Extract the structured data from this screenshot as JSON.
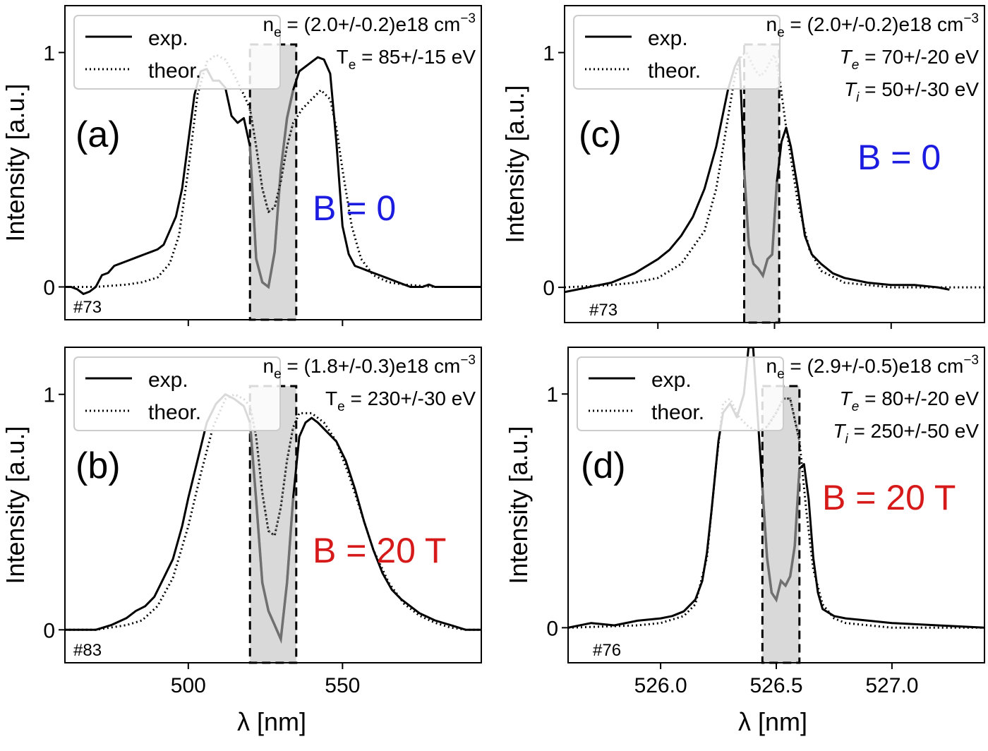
{
  "figure": {
    "xlabel_left": "λ [nm]",
    "xlabel_right": "λ [nm]"
  },
  "colors": {
    "exp": "#000000",
    "theory": "#000000",
    "shade": "#d9d9d9",
    "masked": "#707070",
    "b_zero": "#1c1ce0",
    "b_field": "#d61a1a"
  },
  "chart_data": [
    {
      "id": "a",
      "type": "line",
      "panel_label": "(a)",
      "shot": "#73",
      "ylabel": "Intensity [a.u.]",
      "xlim": [
        460,
        595
      ],
      "ylim": [
        -0.14,
        1.2
      ],
      "xticks": [],
      "yticks": [
        0,
        1
      ],
      "ytick_labels": [
        "0",
        "1"
      ],
      "legend": [
        "exp.",
        "theor."
      ],
      "params": [
        {
          "base": "n",
          "sub": "e",
          "text": " = (2.0+/-0.2)e18 cm",
          "sup": "−3"
        },
        {
          "base": "T",
          "sub": "e",
          "text": " = 85+/-15 eV"
        }
      ],
      "field_label": "B = 0",
      "field_color": "#1c1ce0",
      "shaded": [
        520,
        535
      ],
      "series": [
        {
          "name": "exp.",
          "style": "solid",
          "x": [
            460,
            462,
            464,
            466,
            468,
            470,
            472,
            474,
            476,
            478,
            480,
            482,
            484,
            486,
            488,
            490,
            492,
            494,
            496,
            498,
            500,
            502,
            504,
            506,
            508,
            510,
            512,
            514,
            516,
            518,
            520,
            522,
            524,
            526,
            528,
            530,
            532,
            534,
            536,
            538,
            540,
            542,
            544,
            546,
            548,
            550,
            552,
            554,
            556,
            558,
            560,
            562,
            564,
            566,
            568,
            570,
            572,
            574,
            576,
            578,
            580,
            582,
            584,
            586,
            588,
            590,
            592,
            595
          ],
          "y": [
            0.0,
            0.0,
            -0.01,
            -0.03,
            -0.02,
            0.0,
            0.05,
            0.06,
            0.09,
            0.1,
            0.11,
            0.12,
            0.13,
            0.14,
            0.15,
            0.16,
            0.18,
            0.24,
            0.3,
            0.42,
            0.62,
            0.82,
            0.92,
            0.93,
            0.88,
            0.88,
            0.85,
            0.73,
            0.7,
            0.72,
            0.6,
            0.12,
            0.02,
            0.0,
            0.15,
            0.5,
            0.72,
            0.84,
            0.92,
            0.94,
            0.96,
            0.98,
            0.97,
            0.91,
            0.62,
            0.26,
            0.14,
            0.09,
            0.08,
            0.07,
            0.06,
            0.05,
            0.04,
            0.03,
            0.02,
            0.01,
            0.0,
            0.0,
            0.0,
            0.01,
            0.0,
            0.0,
            0.0,
            0.0,
            0.0,
            0.0,
            0.0,
            0.0
          ]
        },
        {
          "name": "theor.",
          "style": "dotted",
          "x": [
            460,
            470,
            480,
            485,
            490,
            494,
            497,
            500,
            503,
            506,
            509,
            512,
            515,
            518,
            520,
            522,
            524,
            526,
            528,
            530,
            532,
            534,
            537,
            540,
            543,
            546,
            548,
            550,
            553,
            556,
            560,
            565,
            570,
            580,
            595
          ],
          "y": [
            0.0,
            0.0,
            0.01,
            0.02,
            0.04,
            0.1,
            0.22,
            0.5,
            0.82,
            0.96,
            0.99,
            0.97,
            0.9,
            0.82,
            0.76,
            0.6,
            0.42,
            0.32,
            0.34,
            0.45,
            0.6,
            0.7,
            0.76,
            0.8,
            0.84,
            0.8,
            0.68,
            0.5,
            0.26,
            0.12,
            0.05,
            0.02,
            0.01,
            0.0,
            0.0
          ]
        }
      ]
    },
    {
      "id": "b",
      "type": "line",
      "panel_label": "(b)",
      "shot": "#83",
      "ylabel": "Intensity [a.u.]",
      "xlim": [
        460,
        595
      ],
      "ylim": [
        -0.14,
        1.2
      ],
      "xticks": [
        500,
        550
      ],
      "yticks": [
        0,
        1
      ],
      "ytick_labels": [
        "0",
        "1"
      ],
      "legend": [
        "exp.",
        "theor."
      ],
      "params": [
        {
          "base": "n",
          "sub": "e",
          "text": " = (1.8+/-0.3)e18 cm",
          "sup": "−3"
        },
        {
          "base": "T",
          "sub": "e",
          "text": " = 230+/-30 eV"
        }
      ],
      "field_label": "B = 20 T",
      "field_color": "#d61a1a",
      "shaded": [
        520,
        535
      ],
      "series": [
        {
          "name": "exp.",
          "style": "solid",
          "x": [
            460,
            465,
            470,
            475,
            480,
            483,
            486,
            489,
            492,
            495,
            498,
            500,
            503,
            506,
            509,
            512,
            515,
            518,
            520,
            522,
            524,
            526,
            528,
            530,
            532,
            534,
            536,
            538,
            540,
            542,
            545,
            548,
            551,
            554,
            557,
            560,
            563,
            566,
            569,
            572,
            575,
            580,
            585,
            590,
            595
          ],
          "y": [
            0.0,
            0.0,
            0.0,
            0.02,
            0.05,
            0.08,
            0.1,
            0.14,
            0.22,
            0.3,
            0.44,
            0.56,
            0.72,
            0.88,
            0.96,
            1.0,
            0.98,
            0.95,
            0.88,
            0.55,
            0.2,
            0.08,
            0.02,
            -0.04,
            0.2,
            0.56,
            0.82,
            0.88,
            0.9,
            0.88,
            0.84,
            0.8,
            0.72,
            0.6,
            0.46,
            0.34,
            0.24,
            0.17,
            0.13,
            0.1,
            0.07,
            0.04,
            0.02,
            0.0,
            0.0
          ]
        },
        {
          "name": "theor.",
          "style": "dotted",
          "x": [
            460,
            470,
            480,
            485,
            490,
            495,
            500,
            504,
            508,
            512,
            515,
            518,
            520,
            522,
            524,
            526,
            528,
            530,
            532,
            534,
            536,
            540,
            544,
            548,
            552,
            556,
            560,
            565,
            570,
            575,
            580,
            585,
            590,
            595
          ],
          "y": [
            0.0,
            0.0,
            0.02,
            0.04,
            0.1,
            0.22,
            0.44,
            0.66,
            0.86,
            0.98,
            1.0,
            0.98,
            0.95,
            0.82,
            0.58,
            0.42,
            0.4,
            0.52,
            0.72,
            0.86,
            0.92,
            0.92,
            0.88,
            0.8,
            0.66,
            0.5,
            0.34,
            0.2,
            0.11,
            0.06,
            0.03,
            0.01,
            0.0,
            0.0
          ]
        }
      ]
    },
    {
      "id": "c",
      "type": "line",
      "panel_label": "(c)",
      "shot": "#73",
      "ylabel": "Intensity [a.u.]",
      "xlim": [
        525.6,
        527.4
      ],
      "ylim": [
        -0.15,
        1.2
      ],
      "xticks": [],
      "yticks": [
        0,
        1
      ],
      "ytick_labels": [
        "0",
        "1"
      ],
      "legend": [
        "exp.",
        "theor."
      ],
      "params": [
        {
          "base": "n",
          "sub": "e",
          "text": " = (2.0+/-0.2)e18 cm",
          "sup": "−3"
        },
        {
          "base": "T",
          "sub": "e",
          "text": " = 70+/-20 eV",
          "italic": true
        },
        {
          "base": "T",
          "sub": "i",
          "text": " = 50+/-30 eV",
          "italic": true
        }
      ],
      "field_label": "B = 0",
      "field_color": "#1c1ce0",
      "shaded": [
        526.37,
        526.52
      ],
      "series": [
        {
          "name": "exp.",
          "style": "solid",
          "x": [
            525.6,
            525.7,
            525.8,
            525.85,
            525.9,
            525.95,
            526.0,
            526.05,
            526.1,
            526.15,
            526.2,
            526.25,
            526.3,
            526.33,
            526.35,
            526.37,
            526.39,
            526.41,
            526.43,
            526.45,
            526.47,
            526.49,
            526.51,
            526.53,
            526.55,
            526.57,
            526.6,
            526.63,
            526.66,
            526.7,
            526.75,
            526.8,
            526.9,
            527.0,
            527.1,
            527.2,
            527.25
          ],
          "y": [
            -0.02,
            0.0,
            0.02,
            0.04,
            0.06,
            0.09,
            0.12,
            0.16,
            0.22,
            0.3,
            0.42,
            0.6,
            0.84,
            0.94,
            0.98,
            0.5,
            0.18,
            0.1,
            0.08,
            0.05,
            0.12,
            0.14,
            0.45,
            0.62,
            0.68,
            0.6,
            0.42,
            0.22,
            0.14,
            0.1,
            0.06,
            0.04,
            0.02,
            0.01,
            0.01,
            0.0,
            -0.01
          ]
        },
        {
          "name": "theor.",
          "style": "dotted",
          "x": [
            525.6,
            525.8,
            525.9,
            526.0,
            526.1,
            526.2,
            526.25,
            526.3,
            526.33,
            526.36,
            526.38,
            526.4,
            526.42,
            526.44,
            526.46,
            526.48,
            526.5,
            526.52,
            526.55,
            526.6,
            526.65,
            526.7,
            526.8,
            526.9,
            527.0,
            527.4
          ],
          "y": [
            0.0,
            0.01,
            0.02,
            0.04,
            0.1,
            0.24,
            0.42,
            0.72,
            0.9,
            0.99,
            1.0,
            0.96,
            0.92,
            0.9,
            0.92,
            0.96,
            0.99,
            0.9,
            0.68,
            0.36,
            0.16,
            0.07,
            0.02,
            0.01,
            0.0,
            0.0
          ]
        }
      ]
    },
    {
      "id": "d",
      "type": "line",
      "panel_label": "(d)",
      "shot": "#76",
      "ylabel": "Intensity [a.u.]",
      "xlim": [
        525.6,
        527.4
      ],
      "ylim": [
        -0.15,
        1.2
      ],
      "xticks": [
        526.0,
        526.5,
        527.0
      ],
      "xtick_labels": [
        "526.0",
        "526.5",
        "527.0"
      ],
      "yticks": [
        0,
        1
      ],
      "ytick_labels": [
        "0",
        "1"
      ],
      "legend": [
        "exp.",
        "theor."
      ],
      "params": [
        {
          "base": "n",
          "sub": "e",
          "text": " = (2.9+/-0.5)e18 cm",
          "sup": "−3"
        },
        {
          "base": "T",
          "sub": "e",
          "text": " = 80+/-20 eV",
          "italic": true
        },
        {
          "base": "T",
          "sub": "i",
          "text": " = 250+/-50 eV",
          "italic": true
        }
      ],
      "field_label": "B = 20 T",
      "field_color": "#d61a1a",
      "shaded": [
        526.44,
        526.6
      ],
      "series": [
        {
          "name": "exp.",
          "style": "solid",
          "x": [
            525.6,
            525.7,
            525.8,
            525.9,
            526.0,
            526.05,
            526.1,
            526.15,
            526.18,
            526.2,
            526.22,
            526.25,
            526.27,
            526.3,
            526.33,
            526.36,
            526.38,
            526.4,
            526.42,
            526.44,
            526.46,
            526.48,
            526.5,
            526.52,
            526.54,
            526.56,
            526.58,
            526.6,
            526.62,
            526.64,
            526.66,
            526.68,
            526.7,
            526.75,
            526.8,
            526.9,
            527.0,
            527.2,
            527.4
          ],
          "y": [
            0.0,
            0.02,
            0.01,
            0.03,
            0.04,
            0.05,
            0.07,
            0.12,
            0.2,
            0.32,
            0.5,
            0.8,
            0.92,
            0.96,
            0.9,
            1.0,
            1.2,
            1.2,
            0.9,
            0.6,
            0.3,
            0.15,
            0.12,
            0.2,
            0.18,
            0.22,
            0.35,
            0.68,
            0.7,
            0.55,
            0.3,
            0.15,
            0.08,
            0.05,
            0.04,
            0.03,
            0.02,
            0.01,
            0.0
          ]
        },
        {
          "name": "theor.",
          "style": "dotted",
          "x": [
            525.6,
            525.9,
            526.0,
            526.1,
            526.15,
            526.2,
            526.24,
            526.27,
            526.3,
            526.34,
            526.38,
            526.42,
            526.46,
            526.5,
            526.53,
            526.56,
            526.6,
            526.63,
            526.66,
            526.7,
            526.75,
            526.8,
            526.9,
            527.0,
            527.4
          ],
          "y": [
            0.0,
            0.01,
            0.02,
            0.05,
            0.1,
            0.3,
            0.7,
            0.96,
            0.98,
            0.9,
            0.86,
            0.84,
            0.86,
            0.92,
            0.98,
            0.98,
            0.8,
            0.5,
            0.25,
            0.1,
            0.04,
            0.02,
            0.01,
            0.0,
            0.0
          ]
        }
      ]
    }
  ]
}
